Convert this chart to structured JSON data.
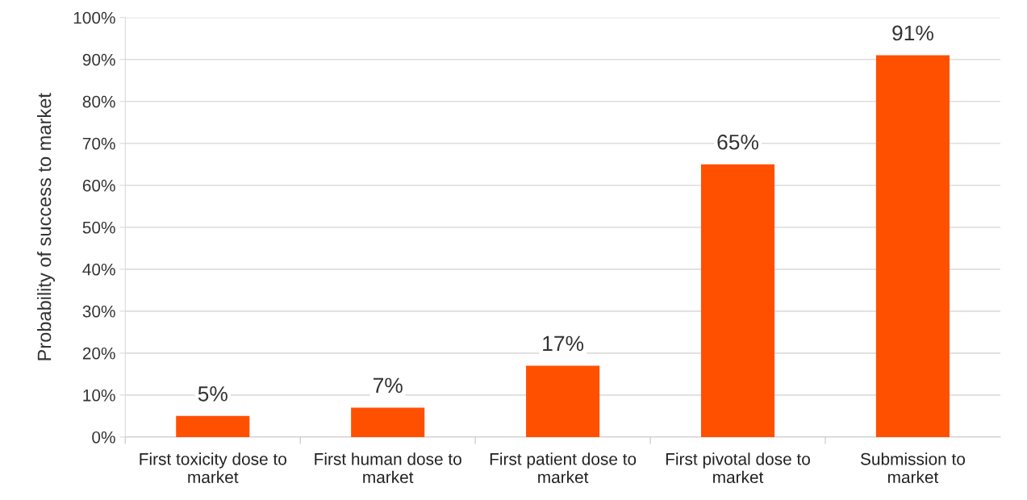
{
  "chart_data": {
    "type": "bar",
    "ylabel": "Probability of success to market",
    "categories": [
      "First toxicity dose to\nmarket",
      "First human dose to\nmarket",
      "First patient dose to\nmarket",
      "First pivotal dose to\nmarket",
      "Submission to\nmarket"
    ],
    "values": [
      5,
      7,
      17,
      65,
      91
    ],
    "value_labels": [
      "5%",
      "7%",
      "17%",
      "65%",
      "91%"
    ],
    "color": "#ff5000",
    "ylim": [
      0,
      100
    ],
    "yticks": [
      {
        "value": 0,
        "label": "0%"
      },
      {
        "value": 10,
        "label": "10%"
      },
      {
        "value": 20,
        "label": "20%"
      },
      {
        "value": 30,
        "label": "30%"
      },
      {
        "value": 40,
        "label": "40%"
      },
      {
        "value": 50,
        "label": "50%"
      },
      {
        "value": 60,
        "label": "60%"
      },
      {
        "value": 70,
        "label": "70%"
      },
      {
        "value": 80,
        "label": "80%"
      },
      {
        "value": 90,
        "label": "90%"
      },
      {
        "value": 100,
        "label": "100%"
      }
    ],
    "grid": "y",
    "legend": false
  }
}
